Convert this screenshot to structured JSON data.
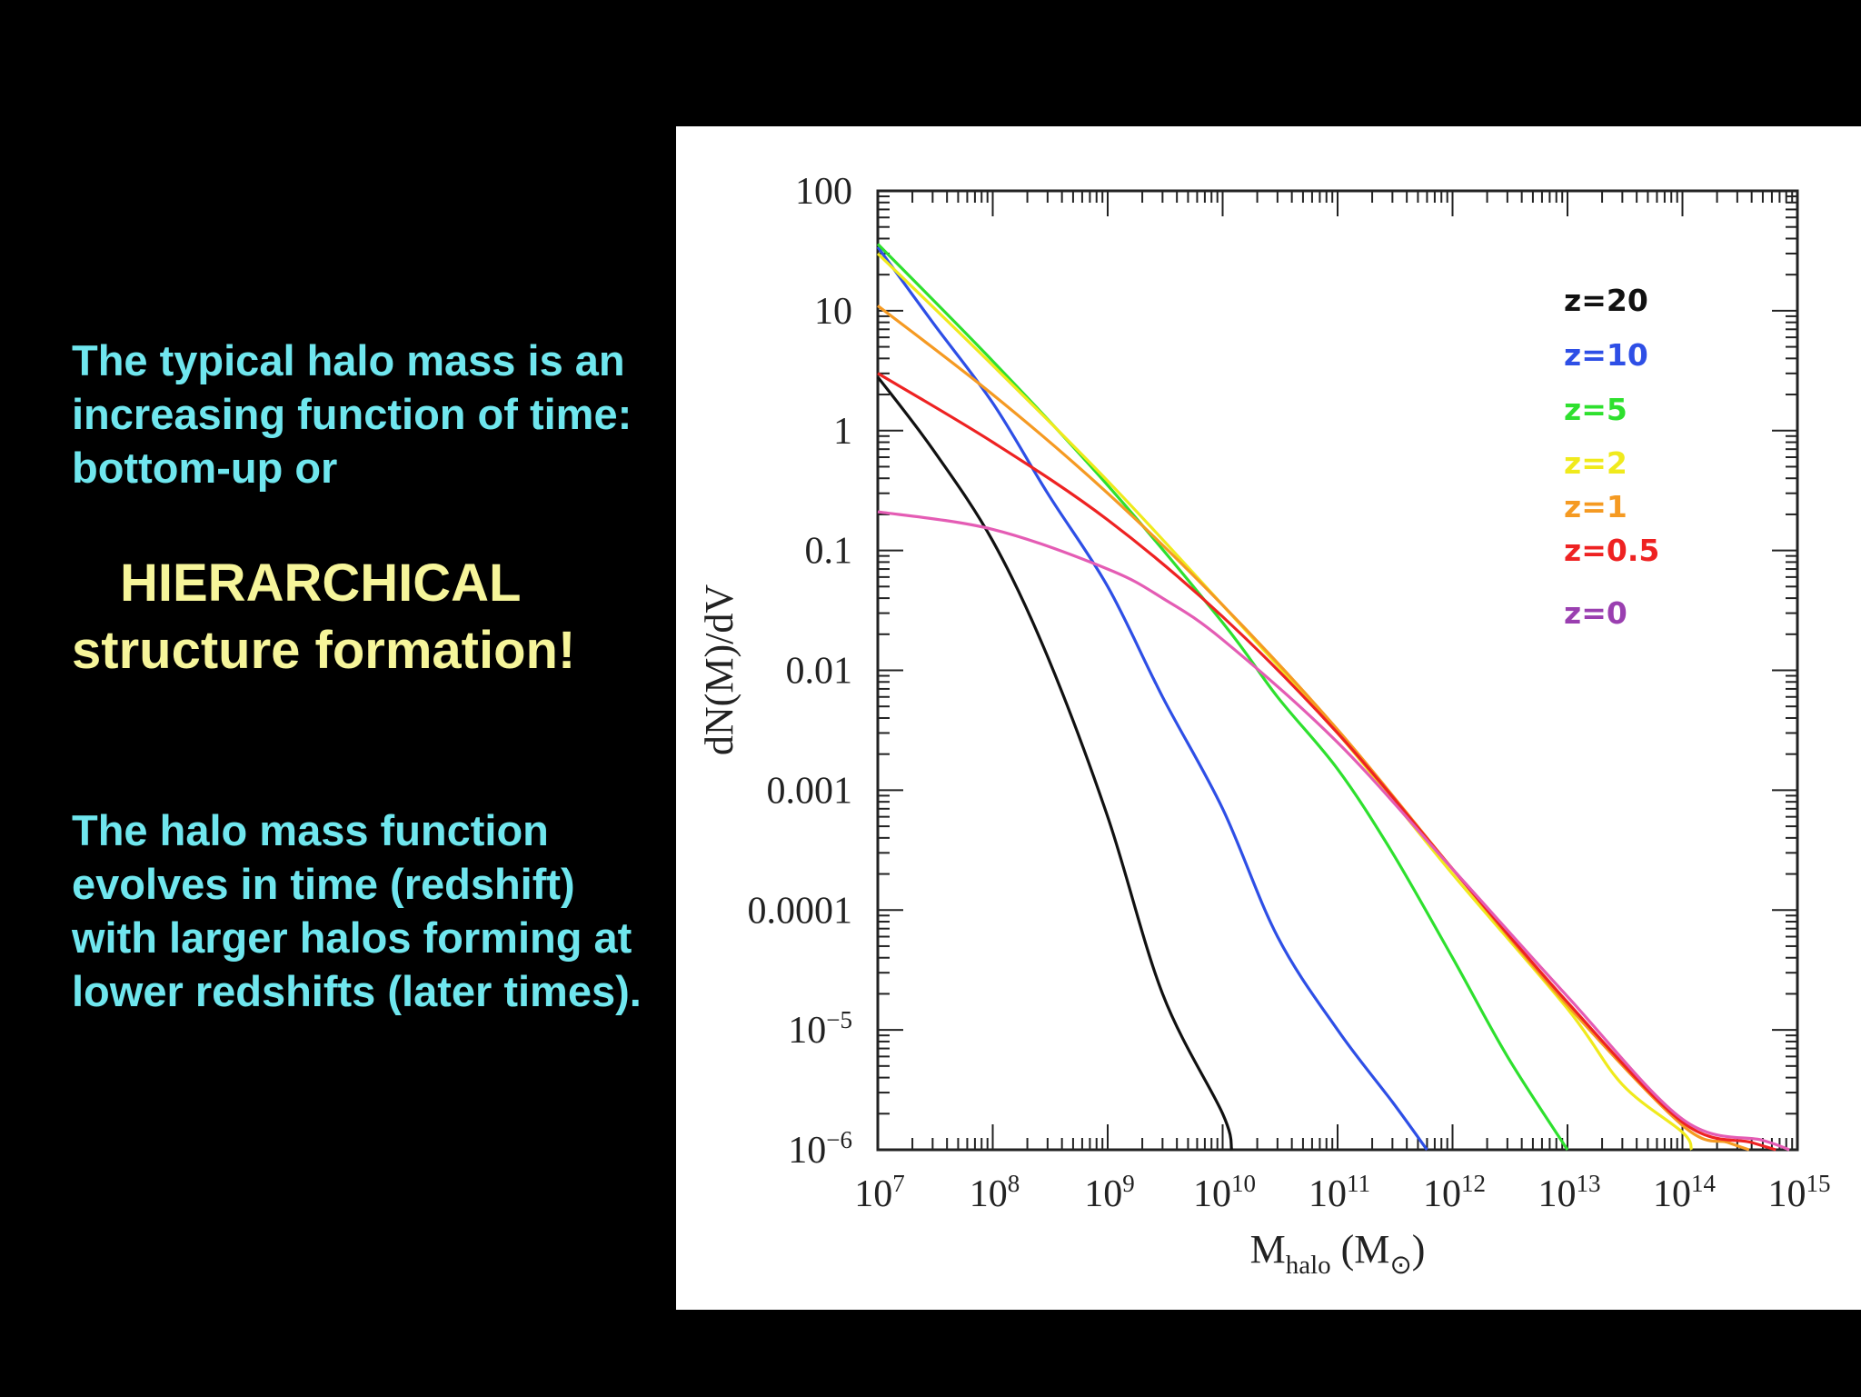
{
  "text": {
    "para1": "The typical halo mass is an increasing function of time: bottom-up or",
    "hier1": "HIERARCHICAL",
    "hier2": "structure formation!",
    "para3": "The halo mass function evolves in time (redshift) with larger halos forming at lower redshifts (later times)."
  },
  "chart_data": {
    "type": "line",
    "title": "",
    "xlabel": "M",
    "xlabel_sub": "halo",
    "xlabel_unit": "(M",
    "xlabel_unit_sub": "⊙",
    "xlabel_unit_close": ")",
    "ylabel": "dN(M)/dV",
    "xscale": "log",
    "yscale": "log",
    "xlim": [
      10000000.0,
      1000000000000000.0
    ],
    "ylim": [
      1e-06,
      100
    ],
    "grid": false,
    "legend_position": "top-right",
    "x_tick_labels": [
      {
        "value": 10000000.0,
        "base": "10",
        "exp": "7"
      },
      {
        "value": 100000000.0,
        "base": "10",
        "exp": "8"
      },
      {
        "value": 1000000000.0,
        "base": "10",
        "exp": "9"
      },
      {
        "value": 10000000000.0,
        "base": "10",
        "exp": "10"
      },
      {
        "value": 100000000000.0,
        "base": "10",
        "exp": "11"
      },
      {
        "value": 1000000000000.0,
        "base": "10",
        "exp": "12"
      },
      {
        "value": 10000000000000.0,
        "base": "10",
        "exp": "13"
      },
      {
        "value": 100000000000000.0,
        "base": "10",
        "exp": "14"
      },
      {
        "value": 1000000000000000.0,
        "base": "10",
        "exp": "15"
      }
    ],
    "y_tick_labels": [
      {
        "value": 100,
        "base": "100",
        "exp": ""
      },
      {
        "value": 10,
        "base": "10",
        "exp": ""
      },
      {
        "value": 1,
        "base": "1",
        "exp": ""
      },
      {
        "value": 0.1,
        "base": "0.1",
        "exp": ""
      },
      {
        "value": 0.01,
        "base": "0.01",
        "exp": ""
      },
      {
        "value": 0.001,
        "base": "0.001",
        "exp": ""
      },
      {
        "value": 0.0001,
        "base": "0.0001",
        "exp": ""
      },
      {
        "value": 1e-05,
        "base": "10",
        "exp": "−5"
      },
      {
        "value": 1e-06,
        "base": "10",
        "exp": "−6"
      }
    ],
    "series": [
      {
        "name": "z=20",
        "color": "#111111",
        "x": [
          10000000.0,
          30000000.0,
          100000000.0,
          300000000.0,
          1000000000.0,
          3000000000.0,
          10000000000.0,
          12000000000.0
        ],
        "y": [
          2.8,
          0.7,
          0.12,
          0.013,
          0.0006,
          2e-05,
          2e-06,
          1e-06
        ]
      },
      {
        "name": "z=10",
        "color": "#2e4fe6",
        "x": [
          10000000.0,
          30000000.0,
          100000000.0,
          300000000.0,
          1000000000.0,
          3000000000.0,
          10000000000.0,
          30000000000.0,
          100000000000.0,
          300000000000.0,
          600000000000.0
        ],
        "y": [
          34,
          8,
          1.7,
          0.3,
          0.05,
          0.006,
          0.0007,
          6e-05,
          1e-05,
          2.5e-06,
          1e-06
        ]
      },
      {
        "name": "z=5",
        "color": "#2ee02e",
        "x": [
          10000000.0,
          100000000.0,
          1000000000.0,
          10000000000.0,
          30000000000.0,
          100000000000.0,
          300000000000.0,
          1000000000000.0,
          3000000000000.0,
          10000000000000.0
        ],
        "y": [
          36,
          3.8,
          0.35,
          0.025,
          0.006,
          0.0015,
          0.0003,
          4e-05,
          6e-06,
          1e-06
        ]
      },
      {
        "name": "z=2",
        "color": "#f0ea1c",
        "x": [
          10000000.0,
          100000000.0,
          1000000000.0,
          10000000000.0,
          100000000000.0,
          1000000000000.0,
          10000000000000.0,
          30000000000000.0,
          100000000000000.0,
          120000000000000.0
        ],
        "y": [
          30,
          3.5,
          0.38,
          0.035,
          0.003,
          0.0002,
          1.5e-05,
          3.5e-06,
          1.4e-06,
          1e-06
        ]
      },
      {
        "name": "z=1",
        "color": "#f59a22",
        "x": [
          10000000.0,
          100000000.0,
          1000000000.0,
          10000000000.0,
          100000000000.0,
          1000000000000.0,
          10000000000000.0,
          100000000000000.0,
          250000000000000.0,
          380000000000000.0
        ],
        "y": [
          11,
          2,
          0.3,
          0.035,
          0.0032,
          0.00022,
          1.6e-05,
          1.6e-06,
          1.15e-06,
          1e-06
        ]
      },
      {
        "name": "z=0.5",
        "color": "#ee2222",
        "x": [
          10000000.0,
          100000000.0,
          1000000000.0,
          10000000000.0,
          100000000000.0,
          1000000000000.0,
          10000000000000.0,
          100000000000000.0,
          400000000000000.0,
          650000000000000.0
        ],
        "y": [
          3,
          0.8,
          0.18,
          0.028,
          0.003,
          0.00022,
          1.7e-05,
          1.7e-06,
          1.15e-06,
          1e-06
        ]
      },
      {
        "name": "z=0",
        "color": "#e45cb4",
        "x": [
          10000000.0,
          100000000.0,
          1000000000.0,
          3000000000.0,
          10000000000.0,
          100000000000.0,
          1000000000000.0,
          10000000000000.0,
          100000000000000.0,
          500000000000000.0,
          850000000000000.0
        ],
        "y": [
          0.21,
          0.15,
          0.07,
          0.04,
          0.018,
          0.0025,
          0.00022,
          1.9e-05,
          1.8e-06,
          1.2e-06,
          1e-06
        ]
      }
    ],
    "legend_colors": [
      "#111111",
      "#2e4fe6",
      "#2ee02e",
      "#f0ea1c",
      "#f59a22",
      "#ee2222",
      "#9a3fb0"
    ]
  }
}
